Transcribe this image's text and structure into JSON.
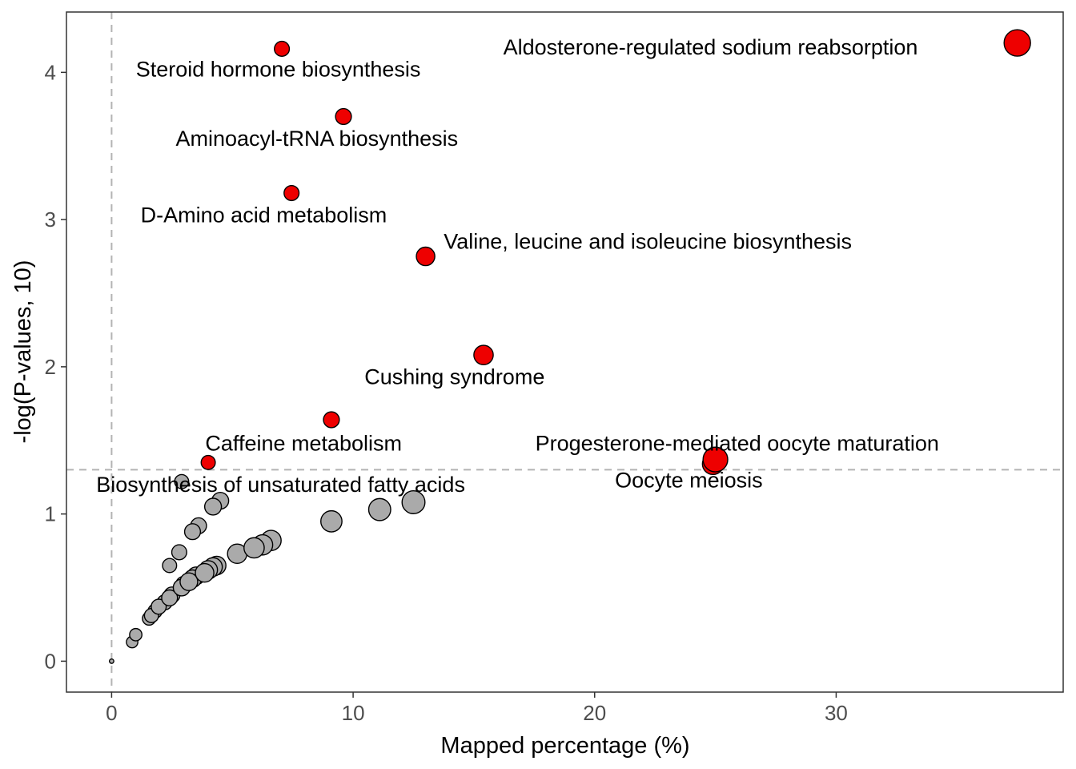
{
  "colors": {
    "significant": "#ee0000",
    "non_significant": "#aaaaaa",
    "stroke": "#000000",
    "reference_line": "#b3b3b3",
    "panel_border": "#333333"
  },
  "chart_data": {
    "type": "scatter",
    "xlabel": "Mapped percentage (%)",
    "ylabel": "-log(P-values, 10)",
    "xlim": [
      -1.87,
      39.4
    ],
    "ylim": [
      -0.21,
      4.41
    ],
    "x_ticks": [
      0,
      10,
      20,
      30
    ],
    "y_ticks": [
      0,
      1,
      2,
      3,
      4
    ],
    "grid": false,
    "reference_lines": {
      "x": 0,
      "y": 1.301
    },
    "significance_threshold": 1.301,
    "points": [
      {
        "x": 37.5,
        "y": 4.2,
        "size": 3.0,
        "label": "Aldosterone-regulated sodium reabsorption",
        "label_pos": [
          24.8,
          4.17
        ]
      },
      {
        "x": 7.05,
        "y": 4.16,
        "size": 1.7,
        "label": "Steroid hormone biosynthesis",
        "label_pos": [
          6.9,
          4.02
        ]
      },
      {
        "x": 9.6,
        "y": 3.7,
        "size": 1.8,
        "label": "Aminoacyl-tRNA biosynthesis",
        "label_pos": [
          8.5,
          3.55
        ]
      },
      {
        "x": 7.45,
        "y": 3.18,
        "size": 1.7,
        "label": "D-Amino acid metabolism",
        "label_pos": [
          6.3,
          3.03
        ]
      },
      {
        "x": 13.0,
        "y": 2.75,
        "size": 2.1,
        "label": "Valine, leucine and isoleucine biosynthesis",
        "label_pos": [
          22.2,
          2.85
        ]
      },
      {
        "x": 15.4,
        "y": 2.08,
        "size": 2.2,
        "label": "Cushing syndrome",
        "label_pos": [
          14.2,
          1.93
        ]
      },
      {
        "x": 9.1,
        "y": 1.64,
        "size": 1.8,
        "label": "Caffeine metabolism",
        "label_pos": [
          7.95,
          1.48
        ]
      },
      {
        "x": 4.0,
        "y": 1.35,
        "size": 1.6,
        "label": "Biosynthesis of unsaturated fatty acids",
        "label_pos": [
          7.0,
          1.2
        ]
      },
      {
        "x": 25.0,
        "y": 1.37,
        "size": 2.8,
        "label": "Progesterone-mediated oocyte maturation",
        "label_pos": [
          25.9,
          1.48
        ]
      },
      {
        "x": 24.9,
        "y": 1.34,
        "size": 2.4,
        "label": "Oocyte meiosis",
        "label_pos": [
          23.9,
          1.23
        ]
      },
      {
        "x": 0.0,
        "y": 0.0,
        "size": 0.5
      },
      {
        "x": 0.85,
        "y": 0.13,
        "size": 1.3
      },
      {
        "x": 1.0,
        "y": 0.18,
        "size": 1.4
      },
      {
        "x": 1.55,
        "y": 0.29,
        "size": 1.5
      },
      {
        "x": 1.65,
        "y": 0.31,
        "size": 1.6
      },
      {
        "x": 1.8,
        "y": 0.34,
        "size": 1.6
      },
      {
        "x": 1.95,
        "y": 0.37,
        "size": 1.7
      },
      {
        "x": 2.2,
        "y": 0.4,
        "size": 1.7
      },
      {
        "x": 2.4,
        "y": 0.43,
        "size": 1.8
      },
      {
        "x": 2.5,
        "y": 0.45,
        "size": 1.8
      },
      {
        "x": 2.9,
        "y": 0.5,
        "size": 1.9
      },
      {
        "x": 3.0,
        "y": 0.52,
        "size": 1.9
      },
      {
        "x": 3.2,
        "y": 0.54,
        "size": 2.0
      },
      {
        "x": 3.35,
        "y": 0.56,
        "size": 2.0
      },
      {
        "x": 3.5,
        "y": 0.58,
        "size": 2.0
      },
      {
        "x": 3.85,
        "y": 0.6,
        "size": 2.1
      },
      {
        "x": 4.0,
        "y": 0.62,
        "size": 2.1
      },
      {
        "x": 4.2,
        "y": 0.64,
        "size": 2.1
      },
      {
        "x": 4.35,
        "y": 0.65,
        "size": 2.1
      },
      {
        "x": 5.2,
        "y": 0.73,
        "size": 2.2
      },
      {
        "x": 5.9,
        "y": 0.77,
        "size": 2.3
      },
      {
        "x": 6.25,
        "y": 0.79,
        "size": 2.3
      },
      {
        "x": 6.6,
        "y": 0.82,
        "size": 2.3
      },
      {
        "x": 9.1,
        "y": 0.95,
        "size": 2.4
      },
      {
        "x": 11.1,
        "y": 1.03,
        "size": 2.5
      },
      {
        "x": 12.5,
        "y": 1.08,
        "size": 2.6
      },
      {
        "x": 2.4,
        "y": 0.65,
        "size": 1.6
      },
      {
        "x": 2.8,
        "y": 0.74,
        "size": 1.7
      },
      {
        "x": 3.35,
        "y": 0.88,
        "size": 1.8
      },
      {
        "x": 3.6,
        "y": 0.92,
        "size": 1.8
      },
      {
        "x": 4.2,
        "y": 1.05,
        "size": 1.9
      },
      {
        "x": 4.5,
        "y": 1.09,
        "size": 1.9
      },
      {
        "x": 2.9,
        "y": 1.22,
        "size": 1.6
      }
    ]
  }
}
